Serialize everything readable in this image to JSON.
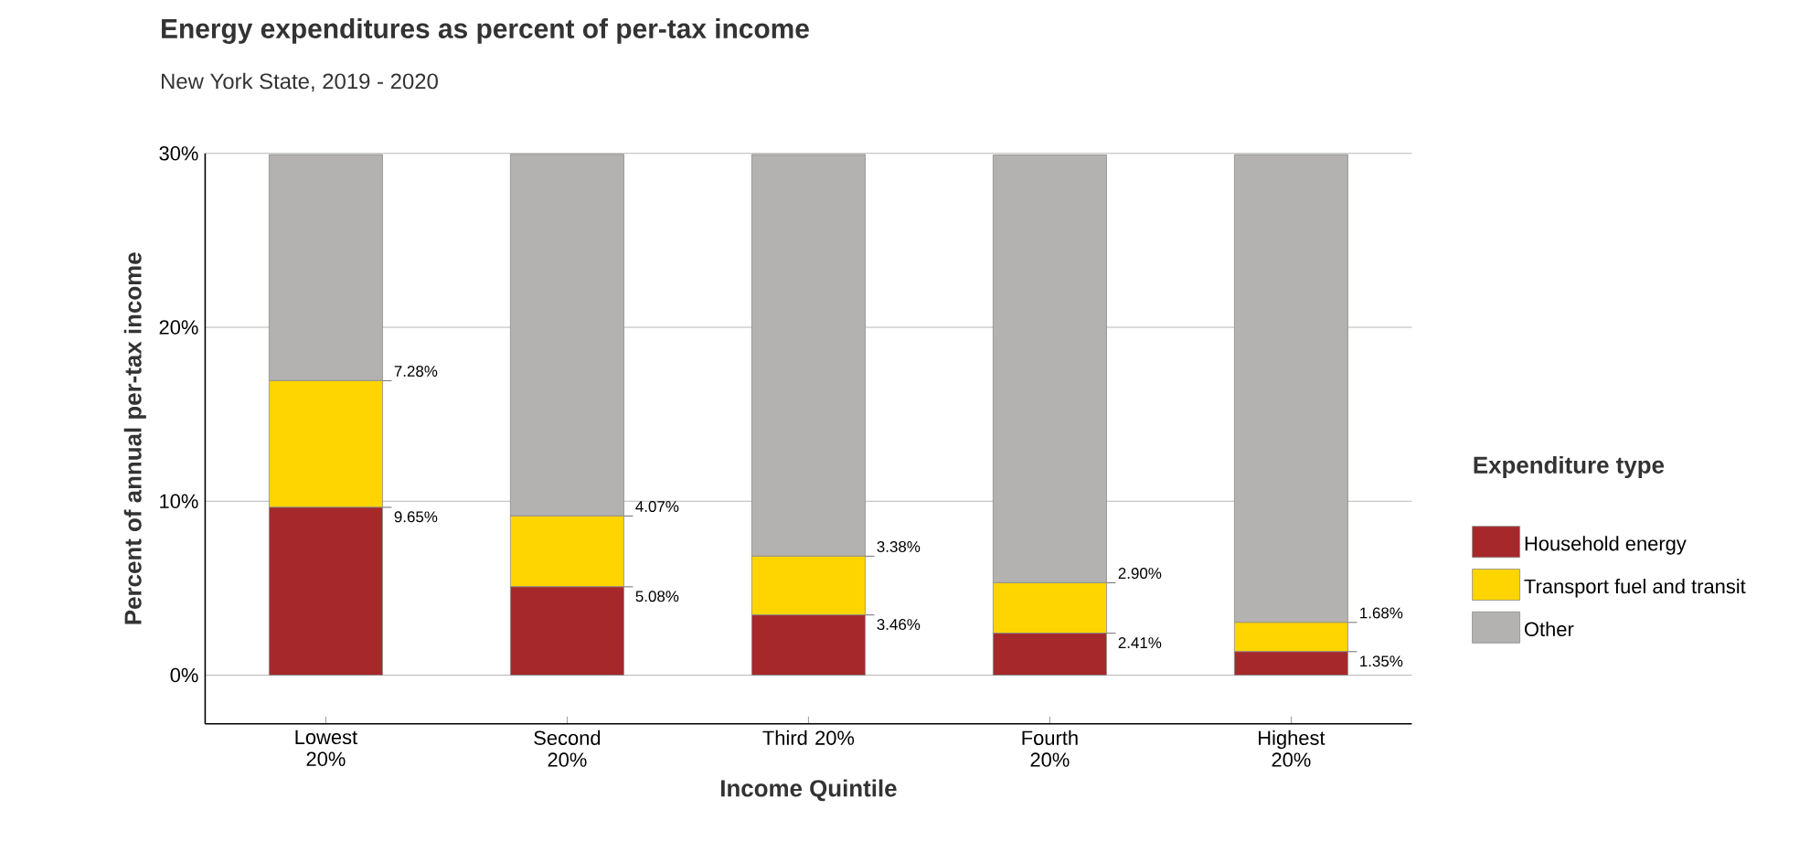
{
  "chart_data": {
    "type": "bar",
    "title": "Energy expenditures as percent of per-tax income",
    "subtitle": "New York State, 2019 - 2020",
    "xlabel": "Income Quintile",
    "ylabel": "Percent of annual per-tax income",
    "legend_title": "Expenditure type",
    "categories": [
      "Lowest 20%",
      "Second 20%",
      "Third 20%",
      "Fourth 20%",
      "Highest 20%"
    ],
    "stacked": true,
    "series": [
      {
        "name": "Household energy",
        "color": "#a6282b",
        "values": [
          9.65,
          5.08,
          3.46,
          2.41,
          1.35
        ],
        "value_labels": [
          "9.65%",
          "5.08%",
          "3.46%",
          "2.41%",
          "1.35%"
        ]
      },
      {
        "name": "Transport fuel and transit",
        "color": "#ffd500",
        "values": [
          7.28,
          4.07,
          3.38,
          2.9,
          1.68
        ],
        "value_labels": [
          "7.28%",
          "4.07%",
          "3.38%",
          "2.90%",
          "1.68%"
        ]
      },
      {
        "name": "Other",
        "color": "#b3b2b0",
        "values": [
          13.0,
          20.8,
          23.1,
          24.6,
          26.9
        ]
      }
    ],
    "ylim": [
      -2.8,
      30
    ],
    "yticks": [
      {
        "value": 0,
        "label": "0%"
      },
      {
        "value": 10,
        "label": "10%"
      },
      {
        "value": 20,
        "label": "20%"
      },
      {
        "value": 30,
        "label": "30%"
      }
    ],
    "grid": "y",
    "legend": "right"
  }
}
